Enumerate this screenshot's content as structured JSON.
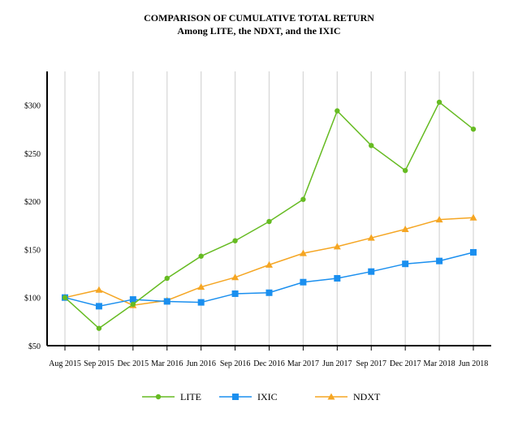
{
  "chart_data": {
    "type": "line",
    "title": "COMPARISON OF CUMULATIVE TOTAL RETURN",
    "subtitle": "Among LITE, the NDXT, and the IXIC",
    "xlabel": "",
    "ylabel": "",
    "ylim": [
      50,
      335
    ],
    "yticks": [
      50,
      100,
      150,
      200,
      250,
      300
    ],
    "ytick_labels": [
      "$50",
      "$100",
      "$150",
      "$200",
      "$250",
      "$300"
    ],
    "grid": "vertical",
    "legend_position": "bottom",
    "categories": [
      "Aug 2015",
      "Sep 2015",
      "Dec 2015",
      "Mar 2016",
      "Jun 2016",
      "Sep 2016",
      "Dec 2016",
      "Mar 2017",
      "Jun 2017",
      "Sep 2017",
      "Dec 2017",
      "Mar 2018",
      "Jun 2018"
    ],
    "series": [
      {
        "name": "LITE",
        "color": "#66bb22",
        "marker": "circle",
        "values": [
          100,
          68,
          93,
          120,
          143,
          159,
          179,
          202,
          294,
          258,
          232,
          303,
          275
        ]
      },
      {
        "name": "IXIC",
        "color": "#1a8fef",
        "marker": "square",
        "values": [
          100,
          91,
          98,
          96,
          95,
          104,
          105,
          116,
          120,
          127,
          135,
          138,
          147
        ]
      },
      {
        "name": "NDXT",
        "color": "#f5a623",
        "marker": "triangle",
        "values": [
          100,
          108,
          92,
          97,
          111,
          121,
          134,
          146,
          153,
          162,
          171,
          181,
          183
        ]
      }
    ]
  }
}
